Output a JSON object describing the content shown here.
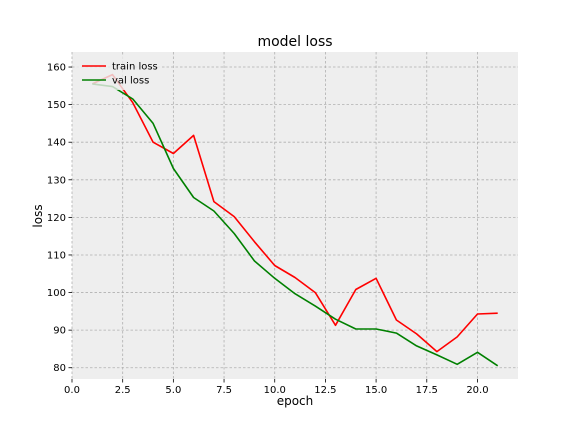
{
  "chart_data": {
    "type": "line",
    "title": "model loss",
    "xlabel": "epoch",
    "ylabel": "loss",
    "xlim": [
      0.0,
      22.0
    ],
    "ylim": [
      77.0,
      164.0
    ],
    "xticks": [
      0.0,
      2.5,
      5.0,
      7.5,
      10.0,
      12.5,
      15.0,
      17.5,
      20.0
    ],
    "xtick_labels": [
      "0.0",
      "2.5",
      "5.0",
      "7.5",
      "10.0",
      "12.5",
      "15.0",
      "17.5",
      "20.0"
    ],
    "yticks": [
      80,
      90,
      100,
      110,
      120,
      130,
      140,
      150,
      160
    ],
    "ytick_labels": [
      "80",
      "90",
      "100",
      "110",
      "120",
      "130",
      "140",
      "150",
      "160"
    ],
    "grid": true,
    "legend_position": "top-left",
    "background": "#eeeeee",
    "series": [
      {
        "name": "train loss",
        "color": "#ff0000",
        "x": [
          1,
          2,
          3,
          4,
          5,
          6,
          7,
          8,
          9,
          10,
          11,
          12,
          13,
          14,
          15,
          16,
          17,
          18,
          19,
          20,
          21
        ],
        "y": [
          155.5,
          158.0,
          150.5,
          140.0,
          137.0,
          141.8,
          124.2,
          120.2,
          113.5,
          107.2,
          104.0,
          100.0,
          91.3,
          100.8,
          103.8,
          92.7,
          89.0,
          84.3,
          88.2,
          94.3,
          94.5
        ]
      },
      {
        "name": "val loss",
        "color": "#008000",
        "x": [
          1,
          2,
          3,
          4,
          5,
          6,
          7,
          8,
          9,
          10,
          11,
          12,
          13,
          14,
          15,
          16,
          17,
          18,
          19,
          20,
          21
        ],
        "y": [
          155.5,
          154.8,
          151.5,
          145.0,
          133.0,
          125.3,
          121.7,
          115.7,
          108.4,
          103.8,
          99.7,
          96.4,
          92.9,
          90.3,
          90.3,
          89.2,
          85.8,
          83.4,
          80.9,
          84.1,
          80.5
        ]
      }
    ]
  }
}
